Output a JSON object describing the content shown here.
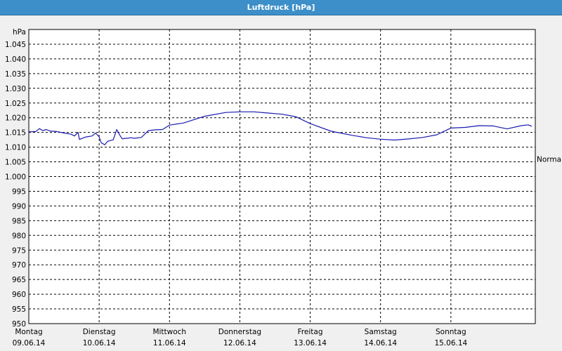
{
  "window": {
    "title": "Luftdruck [hPa]"
  },
  "chart_data": {
    "type": "line",
    "title": "Luftdruck [hPa]",
    "ylabel": "hPa",
    "ylim": [
      950,
      1050
    ],
    "yticks": [
      950,
      955,
      960,
      965,
      970,
      975,
      980,
      985,
      990,
      995,
      1000,
      1005,
      1010,
      1015,
      1020,
      1025,
      1030,
      1035,
      1040,
      1045
    ],
    "ytick_labels": [
      "950",
      "955",
      "960",
      "965",
      "970",
      "975",
      "980",
      "985",
      "990",
      "995",
      "1.000",
      "1.005",
      "1.010",
      "1.015",
      "1.020",
      "1.025",
      "1.030",
      "1.035",
      "1.040",
      "1.045"
    ],
    "xlim": [
      0,
      7.2
    ],
    "x_ticks": [
      {
        "x": 0,
        "day": "Montag",
        "date": "09.06.14"
      },
      {
        "x": 1,
        "day": "Dienstag",
        "date": "10.06.14"
      },
      {
        "x": 2,
        "day": "Mittwoch",
        "date": "11.06.14"
      },
      {
        "x": 3,
        "day": "Donnerstag",
        "date": "12.06.14"
      },
      {
        "x": 4,
        "day": "Freitag",
        "date": "13.06.14"
      },
      {
        "x": 5,
        "day": "Samstag",
        "date": "14.06.14"
      },
      {
        "x": 6,
        "day": "Sonntag",
        "date": "15.06.14"
      }
    ],
    "reference_line": {
      "label": "Normal",
      "value": 1006
    },
    "grid": true,
    "colors": {
      "line": "#1a1ab0",
      "grid": "#000000",
      "plot_bg": "#ffffff"
    },
    "series": [
      {
        "x": [
          0.0,
          0.1,
          0.15,
          0.2,
          0.25,
          0.3,
          0.4,
          0.5,
          0.6,
          0.65,
          0.7,
          0.72,
          0.75,
          0.8,
          0.9,
          0.95,
          1.0,
          1.03,
          1.08,
          1.12,
          1.15,
          1.2,
          1.25,
          1.3,
          1.33,
          1.37,
          1.4,
          1.45,
          1.5,
          1.6,
          1.7,
          1.8,
          1.9,
          2.0,
          2.2,
          2.5,
          2.8,
          3.0,
          3.2,
          3.4,
          3.6,
          3.8,
          4.0,
          4.3,
          4.6,
          4.8,
          5.0,
          5.2,
          5.4,
          5.6,
          5.8,
          6.0,
          6.2,
          6.4,
          6.6,
          6.8,
          7.0,
          7.1,
          7.15
        ],
        "y": [
          1015.2,
          1015.3,
          1016.3,
          1015.6,
          1016.0,
          1015.5,
          1015.3,
          1014.8,
          1014.4,
          1013.8,
          1015.0,
          1012.6,
          1012.9,
          1013.4,
          1013.8,
          1014.8,
          1013.5,
          1011.5,
          1010.8,
          1012.0,
          1012.2,
          1012.5,
          1016.0,
          1013.8,
          1012.8,
          1013.0,
          1013.0,
          1013.2,
          1013.0,
          1013.3,
          1015.6,
          1015.9,
          1016.0,
          1017.5,
          1018.2,
          1020.5,
          1021.8,
          1022.0,
          1022.0,
          1021.6,
          1021.2,
          1020.3,
          1018.0,
          1015.4,
          1014.0,
          1013.2,
          1012.7,
          1012.4,
          1012.8,
          1013.3,
          1014.2,
          1016.5,
          1016.7,
          1017.3,
          1017.2,
          1016.2,
          1017.3,
          1017.6,
          1017.1
        ]
      }
    ]
  }
}
